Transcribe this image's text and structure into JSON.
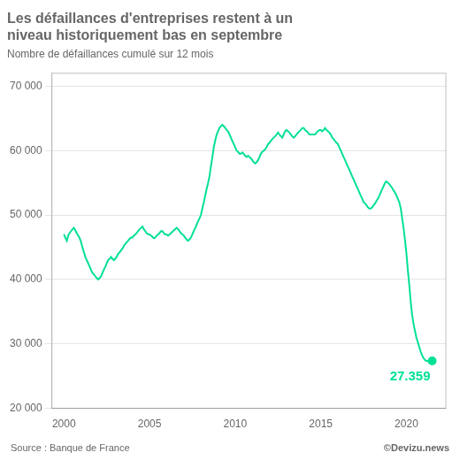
{
  "chart_data": {
    "type": "line",
    "title": [
      "Les défaillances d'entreprises restent à un",
      "niveau historiquement bas en septembre"
    ],
    "subtitle": "Nombre de défaillances cumulé sur 12 mois",
    "source": "Source : Banque de France",
    "copyright": "©Devizu.news",
    "annotations": [
      "27.359"
    ],
    "color": "#00e096",
    "grid": "y",
    "xlim": [
      1999.3,
      2022.3
    ],
    "xticks": [
      2000,
      2005,
      2010,
      2015,
      2020
    ],
    "ylim": [
      20000,
      72000
    ],
    "yticks": [
      {
        "value": 20000,
        "label": "20 000"
      },
      {
        "value": 30000,
        "label": "30 000"
      },
      {
        "value": 40000,
        "label": "40 000"
      },
      {
        "value": 50000,
        "label": "50 000"
      },
      {
        "value": 60000,
        "label": "60 000"
      },
      {
        "value": 70000,
        "label": "70 000"
      }
    ],
    "x": [
      2000.0,
      2000.08,
      2000.17,
      2000.25,
      2000.33,
      2000.42,
      2000.5,
      2000.58,
      2000.67,
      2000.75,
      2000.83,
      2000.92,
      2001.0,
      2001.08,
      2001.17,
      2001.25,
      2001.33,
      2001.42,
      2001.5,
      2001.58,
      2001.67,
      2001.75,
      2001.83,
      2001.92,
      2002.0,
      2002.08,
      2002.17,
      2002.25,
      2002.33,
      2002.42,
      2002.5,
      2002.58,
      2002.67,
      2002.75,
      2002.83,
      2002.92,
      2003.0,
      2003.08,
      2003.17,
      2003.25,
      2003.33,
      2003.42,
      2003.5,
      2003.58,
      2003.67,
      2003.75,
      2003.83,
      2003.92,
      2004.0,
      2004.08,
      2004.17,
      2004.25,
      2004.33,
      2004.42,
      2004.5,
      2004.58,
      2004.67,
      2004.75,
      2004.83,
      2004.92,
      2005.0,
      2005.08,
      2005.17,
      2005.25,
      2005.33,
      2005.42,
      2005.5,
      2005.58,
      2005.67,
      2005.75,
      2005.83,
      2005.92,
      2006.0,
      2006.08,
      2006.17,
      2006.25,
      2006.33,
      2006.42,
      2006.5,
      2006.58,
      2006.67,
      2006.75,
      2006.83,
      2006.92,
      2007.0,
      2007.08,
      2007.17,
      2007.25,
      2007.33,
      2007.42,
      2007.5,
      2007.58,
      2007.67,
      2007.75,
      2007.83,
      2007.92,
      2008.0,
      2008.08,
      2008.17,
      2008.25,
      2008.33,
      2008.42,
      2008.5,
      2008.58,
      2008.67,
      2008.75,
      2008.83,
      2008.92,
      2009.0,
      2009.08,
      2009.17,
      2009.25,
      2009.33,
      2009.42,
      2009.5,
      2009.58,
      2009.67,
      2009.75,
      2009.83,
      2009.92,
      2010.0,
      2010.08,
      2010.17,
      2010.25,
      2010.33,
      2010.42,
      2010.5,
      2010.58,
      2010.67,
      2010.75,
      2010.83,
      2010.92,
      2011.0,
      2011.08,
      2011.17,
      2011.25,
      2011.33,
      2011.42,
      2011.5,
      2011.58,
      2011.67,
      2011.75,
      2011.83,
      2011.92,
      2012.0,
      2012.08,
      2012.17,
      2012.25,
      2012.33,
      2012.42,
      2012.5,
      2012.58,
      2012.67,
      2012.75,
      2012.83,
      2012.92,
      2013.0,
      2013.08,
      2013.17,
      2013.25,
      2013.33,
      2013.42,
      2013.5,
      2013.58,
      2013.67,
      2013.75,
      2013.83,
      2013.92,
      2014.0,
      2014.08,
      2014.17,
      2014.25,
      2014.33,
      2014.42,
      2014.5,
      2014.58,
      2014.67,
      2014.75,
      2014.83,
      2014.92,
      2015.0,
      2015.08,
      2015.17,
      2015.25,
      2015.33,
      2015.42,
      2015.5,
      2015.58,
      2015.67,
      2015.75,
      2015.83,
      2015.92,
      2016.0,
      2016.08,
      2016.17,
      2016.25,
      2016.33,
      2016.42,
      2016.5,
      2016.58,
      2016.67,
      2016.75,
      2016.83,
      2016.92,
      2017.0,
      2017.08,
      2017.17,
      2017.25,
      2017.33,
      2017.42,
      2017.5,
      2017.58,
      2017.67,
      2017.75,
      2017.83,
      2017.92,
      2018.0,
      2018.08,
      2018.17,
      2018.25,
      2018.33,
      2018.42,
      2018.5,
      2018.58,
      2018.67,
      2018.75,
      2018.83,
      2018.92,
      2019.0,
      2019.08,
      2019.17,
      2019.25,
      2019.33,
      2019.42,
      2019.5,
      2019.58,
      2019.67,
      2019.75,
      2019.83,
      2019.92,
      2020.0,
      2020.08,
      2020.17,
      2020.25,
      2020.33,
      2020.42,
      2020.5,
      2020.58,
      2020.67,
      2020.75,
      2020.83,
      2020.92,
      2021.0,
      2021.08,
      2021.17,
      2021.25,
      2021.33,
      2021.42,
      2021.5
    ],
    "values": [
      47000,
      46500,
      46000,
      46800,
      47200,
      47500,
      47800,
      48000,
      47600,
      47200,
      46800,
      46400,
      45800,
      45000,
      44200,
      43500,
      43000,
      42500,
      42000,
      41500,
      41000,
      40800,
      40500,
      40200,
      40000,
      40200,
      40500,
      41000,
      41500,
      42000,
      42500,
      43000,
      43200,
      43500,
      43200,
      43000,
      43200,
      43500,
      44000,
      44200,
      44500,
      44800,
      45200,
      45500,
      45800,
      46000,
      46300,
      46500,
      46500,
      46800,
      47000,
      47200,
      47500,
      47800,
      48000,
      48200,
      47800,
      47500,
      47200,
      47000,
      47000,
      46800,
      46600,
      46400,
      46500,
      46800,
      47000,
      47200,
      47500,
      47500,
      47200,
      47000,
      47000,
      46800,
      47000,
      47200,
      47400,
      47600,
      47800,
      48000,
      47800,
      47500,
      47200,
      47000,
      46800,
      46500,
      46200,
      46000,
      46200,
      46500,
      47000,
      47500,
      48000,
      48500,
      49000,
      49500,
      50000,
      51000,
      52000,
      53000,
      54000,
      55000,
      56000,
      57500,
      59000,
      60500,
      61500,
      62500,
      63000,
      63500,
      63800,
      64000,
      63800,
      63500,
      63200,
      63000,
      62500,
      62000,
      61500,
      61000,
      60500,
      60000,
      59800,
      59500,
      59500,
      59700,
      59500,
      59200,
      59000,
      59200,
      59000,
      58800,
      58500,
      58200,
      58000,
      58200,
      58500,
      59000,
      59500,
      59800,
      60000,
      60200,
      60500,
      61000,
      61200,
      61500,
      61800,
      62000,
      62200,
      62500,
      62800,
      62500,
      62200,
      62000,
      62500,
      63000,
      63200,
      63000,
      62800,
      62500,
      62200,
      62000,
      62200,
      62500,
      62800,
      63000,
      63200,
      63500,
      63500,
      63200,
      63000,
      62800,
      62500,
      62500,
      62500,
      62500,
      62500,
      62800,
      63000,
      63200,
      63200,
      63000,
      63200,
      63500,
      63200,
      63000,
      62800,
      62500,
      62000,
      61800,
      61500,
      61200,
      61000,
      60500,
      60000,
      59500,
      59000,
      58500,
      58000,
      57500,
      57000,
      56500,
      56000,
      55500,
      55000,
      54500,
      54000,
      53500,
      53000,
      52500,
      52000,
      51800,
      51500,
      51200,
      51000,
      51000,
      51200,
      51500,
      51800,
      52200,
      52500,
      53000,
      53500,
      54000,
      54500,
      55000,
      55200,
      55000,
      54800,
      54500,
      54200,
      53800,
      53500,
      53000,
      52500,
      52000,
      51000,
      49500,
      48000,
      46000,
      44000,
      41500,
      39000,
      36500,
      34500,
      33000,
      32000,
      31000,
      30200,
      29500,
      28800,
      28200,
      27800,
      27500,
      27359,
      27359,
      27200,
      27100,
      27359
    ]
  }
}
